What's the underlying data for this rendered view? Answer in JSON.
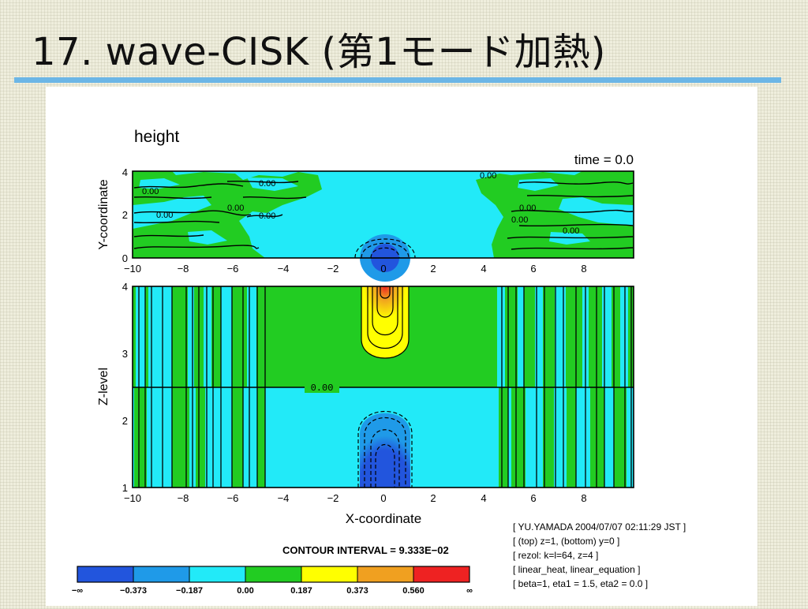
{
  "slide": {
    "title": "17. wave-CISK (第1モード加熱)"
  },
  "figure": {
    "panel_title": "height",
    "time_label": "time = 0.0",
    "top_plot": {
      "ylabel": "Y-coordinate",
      "yticks": [
        "0",
        "2",
        "4"
      ],
      "xticks": [
        "−10",
        "−8",
        "−6",
        "−4",
        "−2",
        "0",
        "2",
        "4",
        "6",
        "8"
      ],
      "contour_labels": [
        "0.00",
        "0.00",
        "0.00",
        "0.00",
        "0.00",
        "0.00",
        "0.00",
        "0.00",
        "0.00"
      ]
    },
    "bottom_plot": {
      "ylabel": "Z-level",
      "yticks": [
        "1",
        "2",
        "3",
        "4"
      ],
      "xticks": [
        "−10",
        "−8",
        "−6",
        "−4",
        "−2",
        "0",
        "2",
        "4",
        "6",
        "8"
      ],
      "xlabel": "X-coordinate",
      "zero_line_label": "0.00"
    },
    "contour_interval": "CONTOUR INTERVAL = 9.333E−02",
    "colorbar": {
      "colors": [
        "#2255dd",
        "#1f9ae8",
        "#22eaf8",
        "#22cc22",
        "#ffff00",
        "#f0a020",
        "#ee2222"
      ],
      "labels": [
        "−∞",
        "−0.373",
        "−0.187",
        "0.00",
        "0.187",
        "0.373",
        "0.560",
        "∞"
      ]
    },
    "metadata_lines": [
      "[ YU.YAMADA 2004/07/07 02:11:29 JST ]",
      "[ (top) z=1, (bottom) y=0 ]",
      "[ rezol: k=l=64, z=4 ]",
      "[ linear_heat, linear_equation ]",
      "[ beta=1, eta1 = 1.5, eta2 = 0.0 ]"
    ]
  }
}
